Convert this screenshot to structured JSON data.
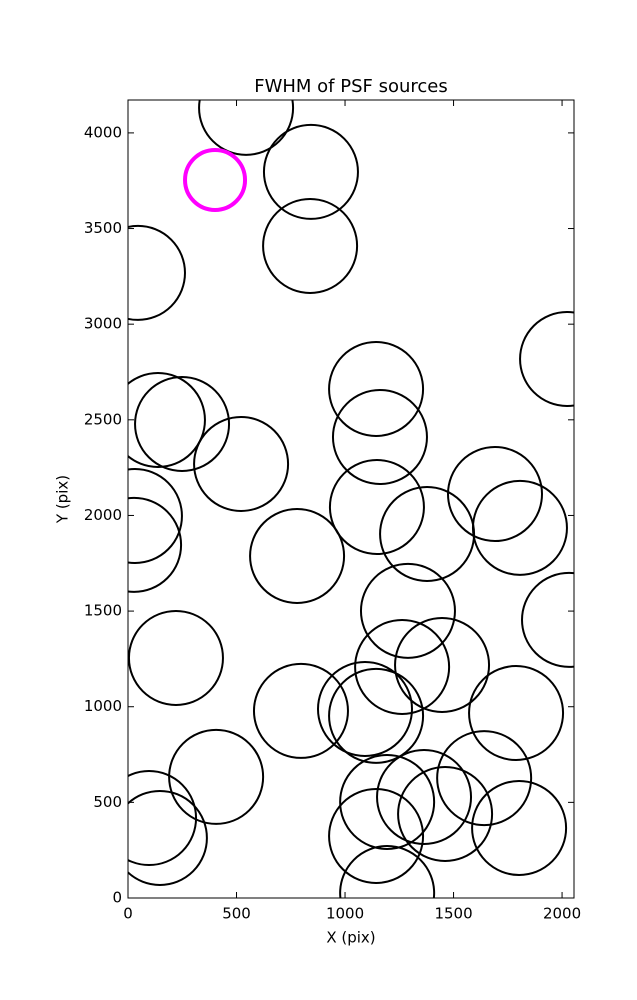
{
  "chart_data": {
    "type": "scatter",
    "title": "FWHM of PSF sources",
    "x_label": "X (pix)",
    "y_label": "Y (pix)",
    "xlim": [
      0,
      2055
    ],
    "ylim": [
      0,
      4172
    ],
    "xticks": [
      0,
      500,
      1000,
      1500,
      2000
    ],
    "yticks": [
      0,
      500,
      1000,
      1500,
      2000,
      2500,
      3000,
      3500,
      4000
    ],
    "series": [
      {
        "color": "#000000",
        "x": [
          544,
          843,
          839,
          46,
          2023,
          1143,
          138,
          249,
          521,
          1161,
          1147,
          32,
          28,
          1691,
          1806,
          1378,
          779,
          1290,
          2032,
          1263,
          1447,
          221,
          797,
          1092,
          1143,
          1788,
          406,
          1641,
          1364,
          1194,
          1461,
          1802,
          97,
          147,
          1143,
          1194
        ],
        "values": [
          4131,
          3796,
          3409,
          3268,
          2818,
          2661,
          2499,
          2478,
          2269,
          2410,
          2044,
          1997,
          1846,
          2112,
          1935,
          1903,
          1788,
          1501,
          1454,
          1208,
          1218,
          1255,
          978,
          988,
          952,
          967,
          633,
          627,
          528,
          502,
          439,
          366,
          418,
          314,
          324,
          26
        ]
      },
      {
        "color": "#ff00ff",
        "x": [
          401
        ],
        "values": [
          3754
        ]
      }
    ]
  }
}
